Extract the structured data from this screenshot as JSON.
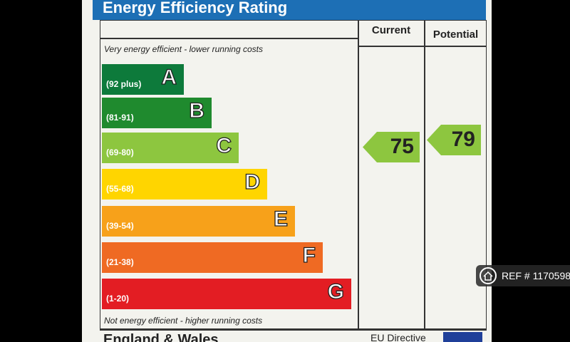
{
  "header": {
    "title": "Energy Efficiency Rating"
  },
  "table": {
    "columns": [
      "Current",
      "Potential"
    ],
    "top_note": "Very energy efficient - lower running costs",
    "bottom_note": "Not energy efficient - higher running costs",
    "bands": [
      {
        "range": "(92 plus)",
        "letter": "A",
        "color": "#0d7a3b"
      },
      {
        "range": "(81-91)",
        "letter": "B",
        "color": "#1f8a2e"
      },
      {
        "range": "(69-80)",
        "letter": "C",
        "color": "#8dc63f"
      },
      {
        "range": "(55-68)",
        "letter": "D",
        "color": "#ffd500"
      },
      {
        "range": "(39-54)",
        "letter": "E",
        "color": "#f7a11a"
      },
      {
        "range": "(21-38)",
        "letter": "F",
        "color": "#ef6a23"
      },
      {
        "range": "(1-20)",
        "letter": "G",
        "color": "#e31d23"
      }
    ],
    "current": "75",
    "potential": "79"
  },
  "footer": {
    "region": "England & Wales",
    "directive": "EU Directive"
  },
  "overlay": {
    "reference": "REF # 1170598"
  }
}
